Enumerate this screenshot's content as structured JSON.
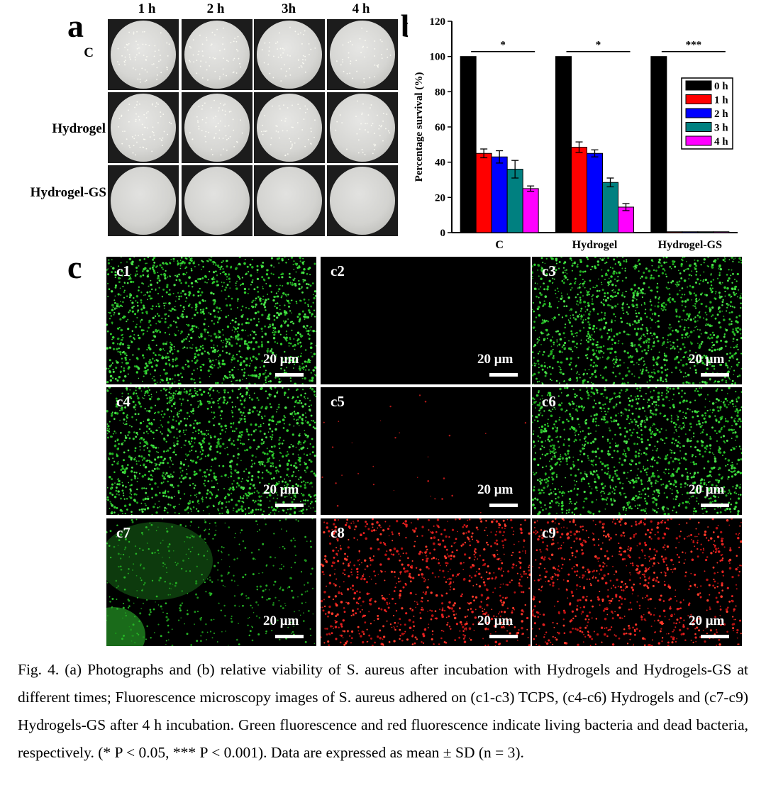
{
  "panel_a": {
    "letter": "a",
    "columns": [
      "1 h",
      "2 h",
      "3h",
      "4 h"
    ],
    "rows": [
      "C",
      "Hydrogel",
      "Hydrogel-GS"
    ]
  },
  "panel_b_letter": "b",
  "panel_c_letter": "c",
  "chart_data": {
    "type": "bar",
    "categories": [
      "C",
      "Hydrogel",
      "Hydrogel-GS"
    ],
    "ylabel": "Percentage survival (%)",
    "xlabel": "",
    "ylim": [
      0,
      120
    ],
    "yticks": [
      0,
      20,
      40,
      60,
      80,
      100,
      120
    ],
    "series": [
      {
        "name": "0 h",
        "color": "#000000",
        "values": [
          100,
          100,
          100
        ],
        "errors": [
          0,
          0,
          0
        ]
      },
      {
        "name": "1 h",
        "color": "#ff0000",
        "values": [
          45,
          48.5,
          0.5
        ],
        "errors": [
          2.5,
          3,
          0
        ]
      },
      {
        "name": "2 h",
        "color": "#0000ff",
        "values": [
          43,
          45,
          0.5
        ],
        "errors": [
          3.5,
          2,
          0
        ]
      },
      {
        "name": "3 h",
        "color": "#008080",
        "values": [
          36,
          28.5,
          0.5
        ],
        "errors": [
          5,
          2.5,
          0
        ]
      },
      {
        "name": "4 h",
        "color": "#ff00ff",
        "values": [
          25,
          14.5,
          0.5
        ],
        "errors": [
          1.5,
          2,
          0
        ]
      }
    ],
    "significance": [
      "*",
      "*",
      "***"
    ],
    "legend": "right"
  },
  "micrographs": [
    {
      "label": "c1",
      "scale": "20 μm",
      "tone": "green"
    },
    {
      "label": "c2",
      "scale": "20 μm",
      "tone": "dark"
    },
    {
      "label": "c3",
      "scale": "20 μm",
      "tone": "green"
    },
    {
      "label": "c4",
      "scale": "20 μm",
      "tone": "green"
    },
    {
      "label": "c5",
      "scale": "20 μm",
      "tone": "sparse-red"
    },
    {
      "label": "c6",
      "scale": "20 μm",
      "tone": "green"
    },
    {
      "label": "c7",
      "scale": "20 μm",
      "tone": "sparse-green"
    },
    {
      "label": "c8",
      "scale": "20 μm",
      "tone": "red"
    },
    {
      "label": "c9",
      "scale": "20 μm",
      "tone": "red"
    }
  ],
  "caption": "Fig. 4. (a) Photographs and (b) relative viability of S. aureus after incubation with Hydrogels and Hydrogels-GS at different times; Fluorescence microscopy images of S. aureus adhered on (c1-c3) TCPS, (c4-c6) Hydrogels and (c7-c9) Hydrogels-GS after 4 h incubation. Green fluorescence and red fluorescence indicate living bacteria and dead bacteria, respectively. (* P < 0.05, *** P < 0.001). Data are expressed as mean ± SD (n = 3)."
}
